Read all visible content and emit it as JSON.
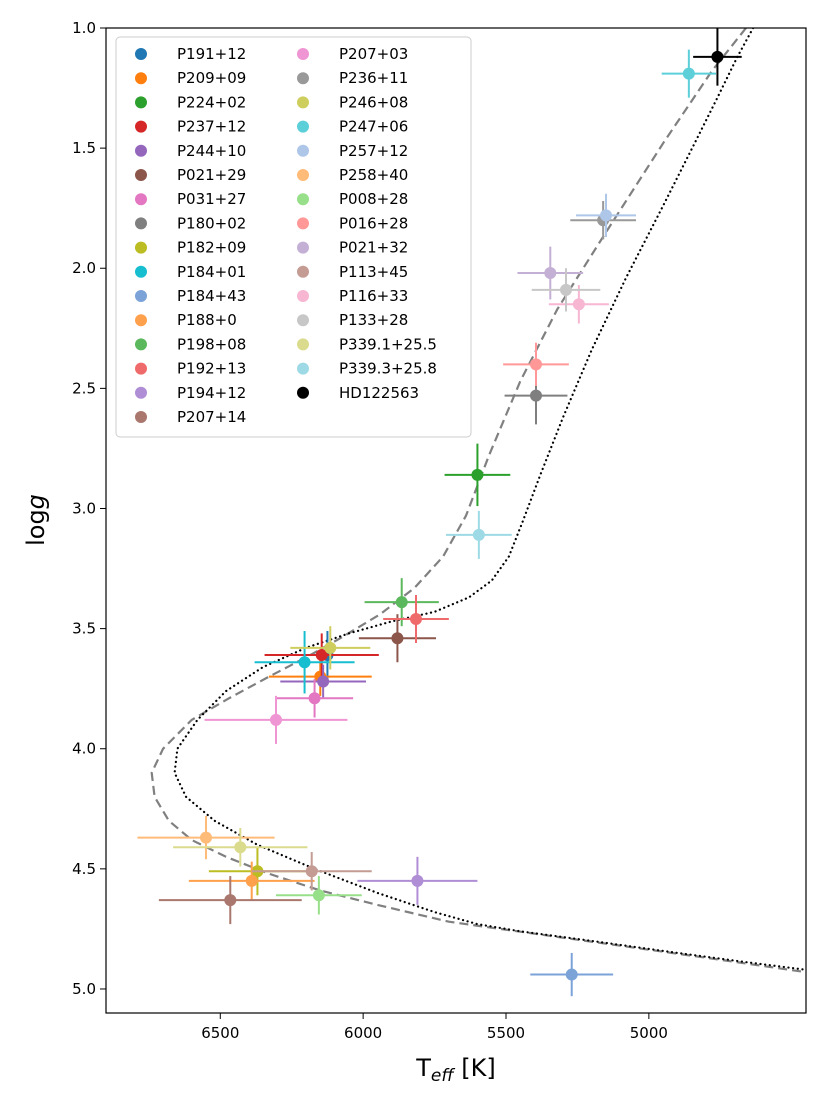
{
  "chart_data": {
    "type": "scatter",
    "title": "",
    "xlabel_main": "T",
    "xlabel_sub": "eff",
    "xlabel_unit": " [K]",
    "ylabel_main": "log",
    "ylabel_italic": "g",
    "xlim": [
      6900,
      4450
    ],
    "ylim": [
      5.1,
      1.0
    ],
    "xticks": [
      6500,
      6000,
      5500,
      5000
    ],
    "xtick_labels": [
      "6500",
      "6000",
      "5500",
      "5000"
    ],
    "yticks": [
      1.0,
      1.5,
      2.0,
      2.5,
      3.0,
      3.5,
      4.0,
      4.5,
      5.0
    ],
    "ytick_labels": [
      "1.0",
      "1.5",
      "2.0",
      "2.5",
      "3.0",
      "3.5",
      "4.0",
      "4.5",
      "5.0"
    ],
    "legend_position": "top-left",
    "legend_columns": 2,
    "points": [
      {
        "label": "P191+12",
        "color": "#1f77b4",
        "teff": 6125,
        "logg": 3.61,
        "xerr": 90,
        "yerr": 0.1
      },
      {
        "label": "P209+09",
        "color": "#ff7f0e",
        "teff": 6150,
        "logg": 3.7,
        "xerr": 180,
        "yerr": 0.08
      },
      {
        "label": "P224+02",
        "color": "#2ca02c",
        "teff": 5600,
        "logg": 2.86,
        "xerr": 115,
        "yerr": 0.13
      },
      {
        "label": "P237+12",
        "color": "#d62728",
        "teff": 6145,
        "logg": 3.61,
        "xerr": 200,
        "yerr": 0.09
      },
      {
        "label": "P244+10",
        "color": "#9467bd",
        "teff": 6140,
        "logg": 3.72,
        "xerr": 150,
        "yerr": 0.07
      },
      {
        "label": "P021+29",
        "color": "#8c564b",
        "teff": 5880,
        "logg": 3.54,
        "xerr": 135,
        "yerr": 0.1
      },
      {
        "label": "P031+27",
        "color": "#e377c2",
        "teff": 6170,
        "logg": 3.79,
        "xerr": 135,
        "yerr": 0.08
      },
      {
        "label": "P180+02",
        "color": "#7f7f7f",
        "teff": 5395,
        "logg": 2.53,
        "xerr": 110,
        "yerr": 0.12
      },
      {
        "label": "P182+09",
        "color": "#bcbd22",
        "teff": 6370,
        "logg": 4.51,
        "xerr": 170,
        "yerr": 0.1
      },
      {
        "label": "P184+01",
        "color": "#17becf",
        "teff": 6205,
        "logg": 3.64,
        "xerr": 175,
        "yerr": 0.13
      },
      {
        "label": "P184+43",
        "color": "#7ba3d8",
        "teff": 5270,
        "logg": 4.94,
        "xerr": 145,
        "yerr": 0.09
      },
      {
        "label": "P188+0",
        "color": "#ffa04c",
        "teff": 6390,
        "logg": 4.55,
        "xerr": 220,
        "yerr": 0.08
      },
      {
        "label": "P198+08",
        "color": "#5cb85c",
        "teff": 5865,
        "logg": 3.39,
        "xerr": 130,
        "yerr": 0.1
      },
      {
        "label": "P192+13",
        "color": "#ef6b6b",
        "teff": 5815,
        "logg": 3.46,
        "xerr": 115,
        "yerr": 0.1
      },
      {
        "label": "P194+12",
        "color": "#b08ed6",
        "teff": 5810,
        "logg": 4.55,
        "xerr": 210,
        "yerr": 0.1
      },
      {
        "label": "P207+14",
        "color": "#a9776d",
        "teff": 6465,
        "logg": 4.63,
        "xerr": 250,
        "yerr": 0.1
      },
      {
        "label": "P207+03",
        "color": "#ef95d3",
        "teff": 6305,
        "logg": 3.88,
        "xerr": 250,
        "yerr": 0.1
      },
      {
        "label": "P236+11",
        "color": "#999999",
        "teff": 5160,
        "logg": 1.8,
        "xerr": 115,
        "yerr": 0.08
      },
      {
        "label": "P246+08",
        "color": "#cece5e",
        "teff": 6115,
        "logg": 3.58,
        "xerr": 140,
        "yerr": 0.09
      },
      {
        "label": "P247+06",
        "color": "#5ccfd9",
        "teff": 4860,
        "logg": 1.19,
        "xerr": 95,
        "yerr": 0.1
      },
      {
        "label": "P257+12",
        "color": "#aec7e8",
        "teff": 5150,
        "logg": 1.78,
        "xerr": 105,
        "yerr": 0.09
      },
      {
        "label": "P258+40",
        "color": "#ffbb78",
        "teff": 6550,
        "logg": 4.37,
        "xerr": 240,
        "yerr": 0.09
      },
      {
        "label": "P008+28",
        "color": "#98df8a",
        "teff": 6155,
        "logg": 4.61,
        "xerr": 150,
        "yerr": 0.08
      },
      {
        "label": "P016+28",
        "color": "#ff9896",
        "teff": 5395,
        "logg": 2.4,
        "xerr": 115,
        "yerr": 0.09
      },
      {
        "label": "P021+32",
        "color": "#c5b0d5",
        "teff": 5345,
        "logg": 2.02,
        "xerr": 115,
        "yerr": 0.11
      },
      {
        "label": "P113+45",
        "color": "#c49c94",
        "teff": 6180,
        "logg": 4.51,
        "xerr": 210,
        "yerr": 0.08
      },
      {
        "label": "P116+33",
        "color": "#f7b6d2",
        "teff": 5245,
        "logg": 2.15,
        "xerr": 105,
        "yerr": 0.08
      },
      {
        "label": "P133+28",
        "color": "#c7c7c7",
        "teff": 5290,
        "logg": 2.09,
        "xerr": 120,
        "yerr": 0.09
      },
      {
        "label": "P339.1+25.5",
        "color": "#dbdb8d",
        "teff": 6430,
        "logg": 4.41,
        "xerr": 235,
        "yerr": 0.08
      },
      {
        "label": "P339.3+25.8",
        "color": "#9edae5",
        "teff": 5595,
        "logg": 3.11,
        "xerr": 115,
        "yerr": 0.1
      },
      {
        "label": "HD122563",
        "color": "#000000",
        "teff": 4760,
        "logg": 1.12,
        "xerr": 85,
        "yerr": 0.12
      }
    ],
    "curves": [
      {
        "name": "dashed isochrone",
        "style": "dashed",
        "color": "#808080",
        "teff": [
          4660,
          4780,
          4950,
          5150,
          5320,
          5450,
          5560,
          5640,
          5720,
          5820,
          5940,
          6080,
          6200,
          6330,
          6470,
          6600,
          6700,
          6740,
          6730,
          6680,
          6600,
          6480,
          6330,
          6150,
          5950,
          5700,
          5400,
          5100,
          4800,
          4450
        ],
        "logg": [
          1.0,
          1.18,
          1.48,
          1.85,
          2.17,
          2.47,
          2.78,
          3.03,
          3.2,
          3.33,
          3.44,
          3.54,
          3.62,
          3.7,
          3.79,
          3.88,
          4.0,
          4.1,
          4.2,
          4.3,
          4.38,
          4.45,
          4.52,
          4.59,
          4.65,
          4.72,
          4.77,
          4.82,
          4.87,
          4.93
        ]
      },
      {
        "name": "dotted isochrone",
        "style": "dotted",
        "color": "#000000",
        "teff": [
          4635,
          4690,
          4760,
          4840,
          4950,
          5080,
          5200,
          5300,
          5380,
          5440,
          5490,
          5550,
          5630,
          5750,
          5900,
          6050,
          6200,
          6350,
          6480,
          6580,
          6650,
          6660,
          6620,
          6520,
          6370,
          6170,
          5950,
          5750,
          5600,
          5450,
          5200,
          4900,
          4650,
          4450
        ],
        "logg": [
          1.0,
          1.12,
          1.29,
          1.48,
          1.74,
          2.04,
          2.34,
          2.62,
          2.86,
          3.05,
          3.2,
          3.3,
          3.37,
          3.43,
          3.47,
          3.52,
          3.58,
          3.66,
          3.76,
          3.88,
          4.0,
          4.1,
          4.2,
          4.3,
          4.4,
          4.5,
          4.6,
          4.68,
          4.73,
          4.76,
          4.8,
          4.85,
          4.89,
          4.92
        ]
      }
    ]
  }
}
